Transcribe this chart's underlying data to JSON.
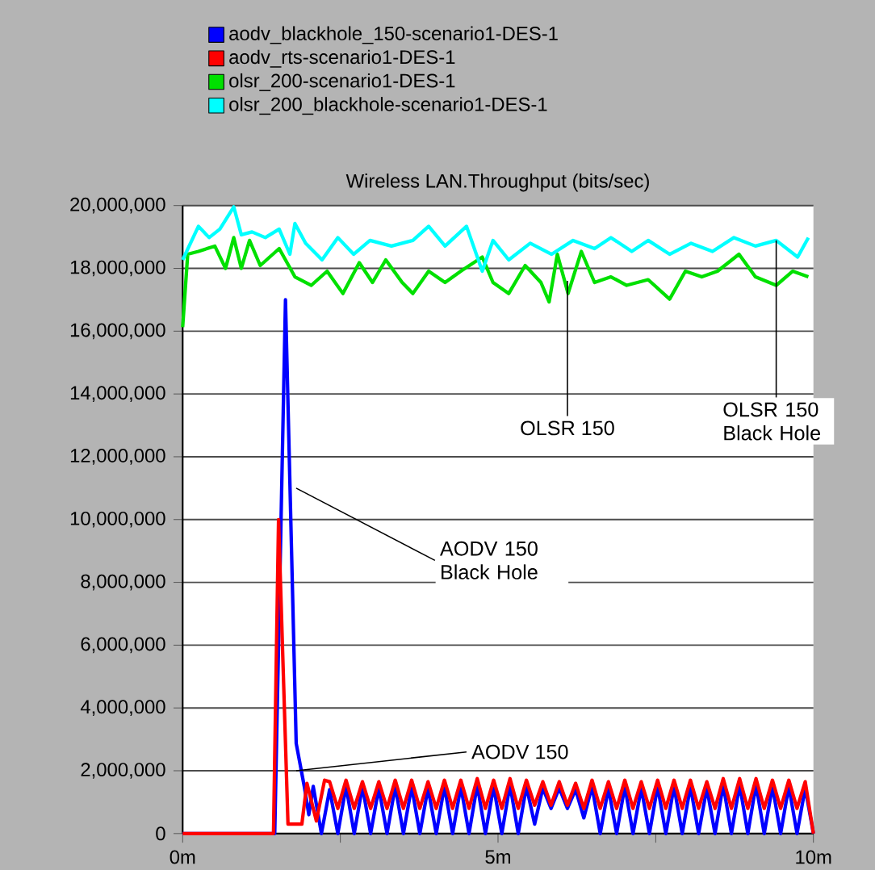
{
  "chart_data": {
    "type": "line",
    "title": "Wireless LAN.Throughput (bits/sec)",
    "xlim": [
      0,
      10
    ],
    "xticks": [
      {
        "value": 0,
        "label": "0m"
      },
      {
        "value": 2.5,
        "label": null
      },
      {
        "value": 5,
        "label": "5m"
      },
      {
        "value": 7.5,
        "label": null
      },
      {
        "value": 10,
        "label": "10m"
      }
    ],
    "ylim": [
      0,
      20000000
    ],
    "yticks": [
      {
        "value": 0,
        "label": "0"
      },
      {
        "value": 2000000,
        "label": "2,000,000"
      },
      {
        "value": 4000000,
        "label": "4,000,000"
      },
      {
        "value": 6000000,
        "label": "6,000,000"
      },
      {
        "value": 8000000,
        "label": "8,000,000"
      },
      {
        "value": 10000000,
        "label": "10,000,000"
      },
      {
        "value": 12000000,
        "label": "12,000,000"
      },
      {
        "value": 14000000,
        "label": "14,000,000"
      },
      {
        "value": 16000000,
        "label": "16,000,000"
      },
      {
        "value": 18000000,
        "label": "18,000,000"
      },
      {
        "value": 20000000,
        "label": "20,000,000"
      }
    ],
    "grid": "y",
    "legend": "top",
    "marker": "none",
    "line_style": "solid",
    "series": [
      {
        "name": "aodv_blackhole_150-scenario1-DES-1",
        "color": "#0000ff",
        "x": [
          0,
          1.46,
          1.63,
          1.8,
          1.93,
          2.0,
          2.07,
          2.2,
          2.33,
          2.46,
          2.59,
          2.72,
          2.85,
          2.98,
          3.11,
          3.24,
          3.37,
          3.5,
          3.63,
          3.76,
          3.89,
          4.02,
          4.15,
          4.28,
          4.41,
          4.54,
          4.67,
          4.8,
          4.93,
          5.06,
          5.19,
          5.32,
          5.45,
          5.58,
          5.71,
          5.84,
          5.97,
          6.1,
          6.23,
          6.36,
          6.49,
          6.62,
          6.75,
          6.88,
          7.01,
          7.14,
          7.27,
          7.4,
          7.53,
          7.66,
          7.79,
          7.92,
          8.05,
          8.18,
          8.31,
          8.44,
          8.57,
          8.7,
          8.83,
          8.96,
          9.09,
          9.22,
          9.35,
          9.48,
          9.61,
          9.74,
          9.87,
          10.0
        ],
        "values": [
          0,
          0,
          17000000,
          2870000,
          1480000,
          600000,
          1500000,
          0,
          1400000,
          0,
          1500000,
          0,
          1500000,
          0,
          1450000,
          0,
          1500000,
          0,
          1500000,
          0,
          1450000,
          0,
          1500000,
          0,
          1500000,
          0,
          1550000,
          0,
          1500000,
          0,
          1550000,
          0,
          1500000,
          300000,
          1450000,
          800000,
          1450000,
          800000,
          1400000,
          500000,
          1500000,
          0,
          1450000,
          0,
          1500000,
          0,
          1450000,
          0,
          1500000,
          0,
          1500000,
          0,
          1500000,
          0,
          1450000,
          0,
          1550000,
          0,
          1550000,
          0,
          1550000,
          0,
          1500000,
          0,
          1500000,
          0,
          1450000,
          0
        ]
      },
      {
        "name": "aodv_rts-scenario1-DES-1",
        "color": "#ff0000",
        "x": [
          0,
          1.44,
          1.52,
          1.67,
          1.89,
          1.97,
          2.12,
          2.25,
          2.33,
          2.46,
          2.59,
          2.72,
          2.85,
          2.98,
          3.11,
          3.24,
          3.37,
          3.5,
          3.63,
          3.76,
          3.89,
          4.02,
          4.15,
          4.28,
          4.41,
          4.54,
          4.67,
          4.8,
          4.93,
          5.06,
          5.19,
          5.32,
          5.45,
          5.58,
          5.71,
          5.84,
          5.97,
          6.1,
          6.23,
          6.36,
          6.49,
          6.62,
          6.75,
          6.88,
          7.01,
          7.14,
          7.27,
          7.4,
          7.53,
          7.66,
          7.79,
          7.92,
          8.05,
          8.18,
          8.31,
          8.44,
          8.57,
          8.7,
          8.83,
          8.96,
          9.09,
          9.22,
          9.35,
          9.48,
          9.61,
          9.74,
          9.87,
          10.0
        ],
        "values": [
          0,
          0,
          10000000,
          300000,
          300000,
          1600000,
          400000,
          1700000,
          1650000,
          800000,
          1700000,
          800000,
          1650000,
          800000,
          1650000,
          800000,
          1700000,
          800000,
          1700000,
          800000,
          1650000,
          800000,
          1700000,
          800000,
          1700000,
          800000,
          1750000,
          800000,
          1700000,
          800000,
          1750000,
          800000,
          1700000,
          900000,
          1650000,
          900000,
          1650000,
          900000,
          1600000,
          800000,
          1700000,
          800000,
          1650000,
          800000,
          1700000,
          800000,
          1650000,
          800000,
          1700000,
          800000,
          1700000,
          800000,
          1700000,
          800000,
          1650000,
          800000,
          1750000,
          800000,
          1750000,
          800000,
          1750000,
          800000,
          1700000,
          800000,
          1700000,
          800000,
          1650000,
          0
        ]
      },
      {
        "name": "olsr_200-scenario1-DES-1",
        "color": "#00e000",
        "x": [
          0,
          0.08,
          0.25,
          0.51,
          0.68,
          0.81,
          0.93,
          1.06,
          1.23,
          1.53,
          1.78,
          2.04,
          2.29,
          2.54,
          2.8,
          3.01,
          3.22,
          3.48,
          3.65,
          3.9,
          4.16,
          4.41,
          4.75,
          4.92,
          5.17,
          5.43,
          5.68,
          5.81,
          5.94,
          6.11,
          6.32,
          6.53,
          6.79,
          7.04,
          7.38,
          7.72,
          7.97,
          8.23,
          8.48,
          8.82,
          9.08,
          9.41,
          9.67,
          9.92
        ],
        "values": [
          16130000,
          18450000,
          18540000,
          18710000,
          18000000,
          18980000,
          18000000,
          18890000,
          18090000,
          18630000,
          17730000,
          17460000,
          17910000,
          17200000,
          18180000,
          17550000,
          18270000,
          17550000,
          17200000,
          17910000,
          17550000,
          17910000,
          18360000,
          17550000,
          17200000,
          18090000,
          17550000,
          16930000,
          18450000,
          17200000,
          18540000,
          17550000,
          17730000,
          17460000,
          17640000,
          17020000,
          17910000,
          17730000,
          17910000,
          18450000,
          17730000,
          17460000,
          17910000,
          17730000
        ]
      },
      {
        "name": "olsr_200_blackhole-scenario1-DES-1",
        "color": "#00ffff",
        "x": [
          0,
          0.25,
          0.42,
          0.59,
          0.81,
          0.93,
          1.1,
          1.31,
          1.53,
          1.7,
          1.78,
          1.95,
          2.21,
          2.46,
          2.71,
          2.97,
          3.31,
          3.65,
          3.9,
          4.16,
          4.5,
          4.75,
          4.92,
          5.17,
          5.51,
          5.85,
          6.19,
          6.53,
          6.79,
          7.12,
          7.38,
          7.72,
          8.06,
          8.4,
          8.74,
          9.08,
          9.41,
          9.75,
          9.92
        ],
        "values": [
          18270000,
          19340000,
          18980000,
          19250000,
          19960000,
          19070000,
          19160000,
          18980000,
          19250000,
          18450000,
          19430000,
          18800000,
          18270000,
          18980000,
          18450000,
          18890000,
          18710000,
          18890000,
          19340000,
          18710000,
          19340000,
          17910000,
          18890000,
          18270000,
          18800000,
          18450000,
          18890000,
          18630000,
          18980000,
          18540000,
          18890000,
          18450000,
          18800000,
          18540000,
          18980000,
          18710000,
          18890000,
          18360000,
          18980000
        ]
      }
    ],
    "annotations": [
      {
        "text": "OLSR 150",
        "x": 6.1,
        "y": 17600000
      },
      {
        "text": "OLSR 150 Black Hole",
        "x": 9.41,
        "y": 18890000
      },
      {
        "text": "AODV 150 Black Hole",
        "x": 1.8,
        "y": 11000000
      },
      {
        "text": "AODV 150",
        "x": 1.8,
        "y": 2000000
      }
    ]
  }
}
